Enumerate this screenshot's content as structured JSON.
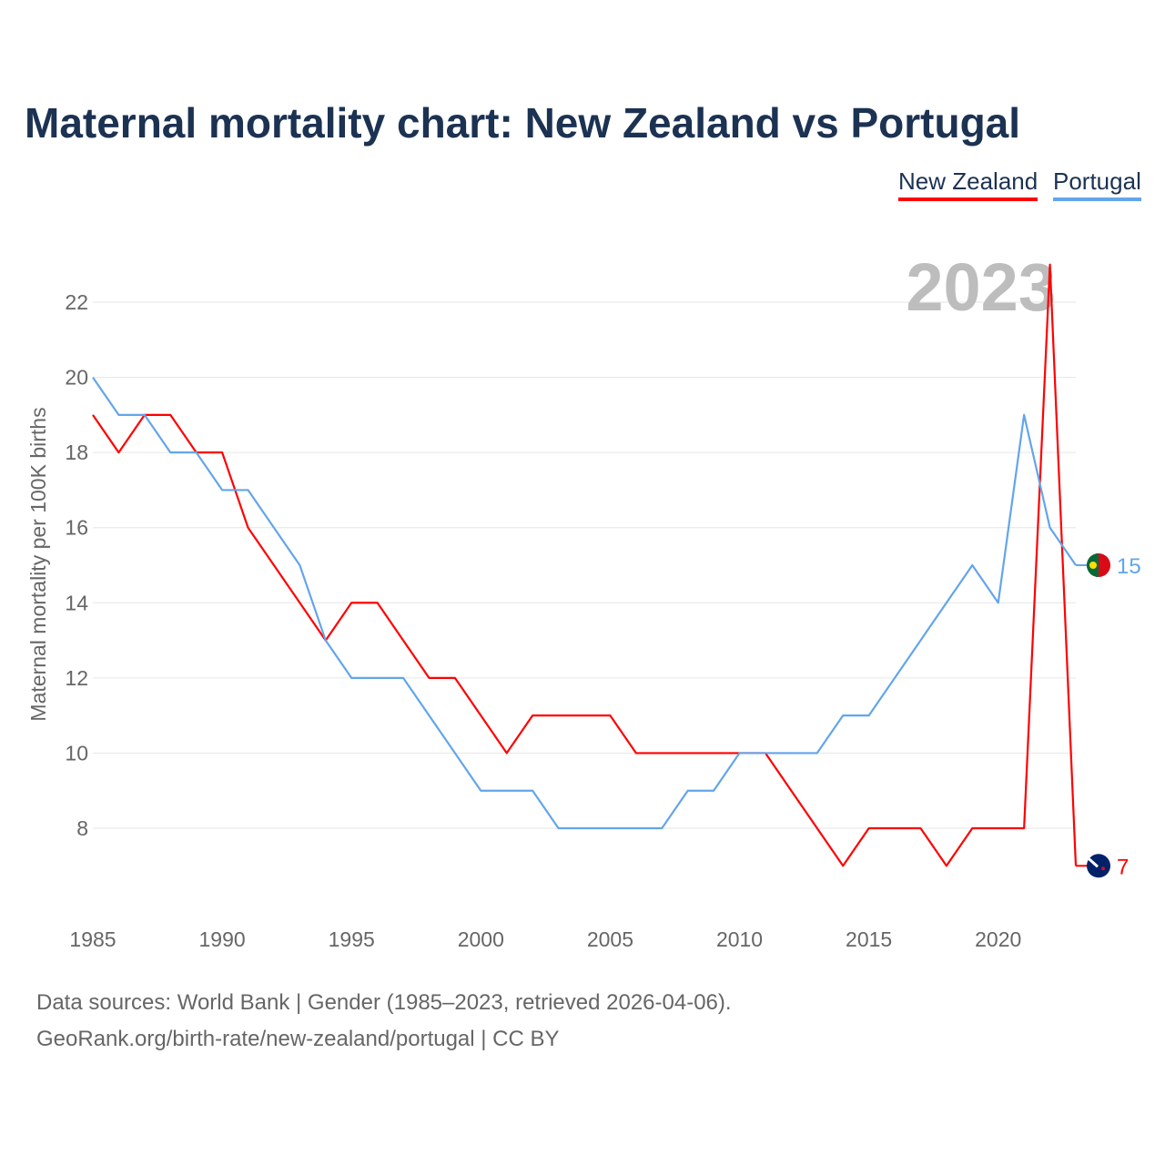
{
  "chart_data": {
    "type": "line",
    "title": "Maternal mortality chart: New Zealand vs Portugal",
    "ylabel": "Maternal mortality per 100K births",
    "xlabel": "",
    "year_label": "2023",
    "x": [
      1985,
      1986,
      1987,
      1988,
      1989,
      1990,
      1991,
      1992,
      1993,
      1994,
      1995,
      1996,
      1997,
      1998,
      1999,
      2000,
      2001,
      2002,
      2003,
      2004,
      2005,
      2006,
      2007,
      2008,
      2009,
      2010,
      2011,
      2012,
      2013,
      2014,
      2015,
      2016,
      2017,
      2018,
      2019,
      2020,
      2021,
      2022,
      2023
    ],
    "xticks": [
      1985,
      1990,
      1995,
      2000,
      2005,
      2010,
      2015,
      2020
    ],
    "yticks": [
      8,
      10,
      12,
      14,
      16,
      18,
      20,
      22
    ],
    "xlim": [
      1985,
      2023
    ],
    "ylim": [
      6,
      23.5
    ],
    "grid": true,
    "legend_position": "top-right",
    "series": [
      {
        "name": "New Zealand",
        "color": "#ff0000",
        "end_label": "7",
        "values": [
          19,
          18,
          19,
          19,
          18,
          18,
          16,
          15,
          14,
          13,
          14,
          14,
          13,
          12,
          12,
          11,
          10,
          11,
          11,
          11,
          11,
          10,
          10,
          10,
          10,
          10,
          10,
          9,
          8,
          7,
          8,
          8,
          8,
          7,
          8,
          8,
          8,
          23,
          7
        ]
      },
      {
        "name": "Portugal",
        "color": "#63a5ea",
        "end_label": "15",
        "values": [
          20,
          19,
          19,
          18,
          18,
          17,
          17,
          16,
          15,
          13,
          12,
          12,
          12,
          11,
          10,
          9,
          9,
          9,
          8,
          8,
          8,
          8,
          8,
          9,
          9,
          10,
          10,
          10,
          10,
          11,
          11,
          12,
          13,
          14,
          15,
          14,
          19,
          16,
          15
        ]
      }
    ]
  },
  "footer": {
    "line1": "Data sources: World Bank | Gender (1985–2023, retrieved 2026-04-06).",
    "line2": "GeoRank.org/birth-rate/new-zealand/portugal | CC BY"
  }
}
